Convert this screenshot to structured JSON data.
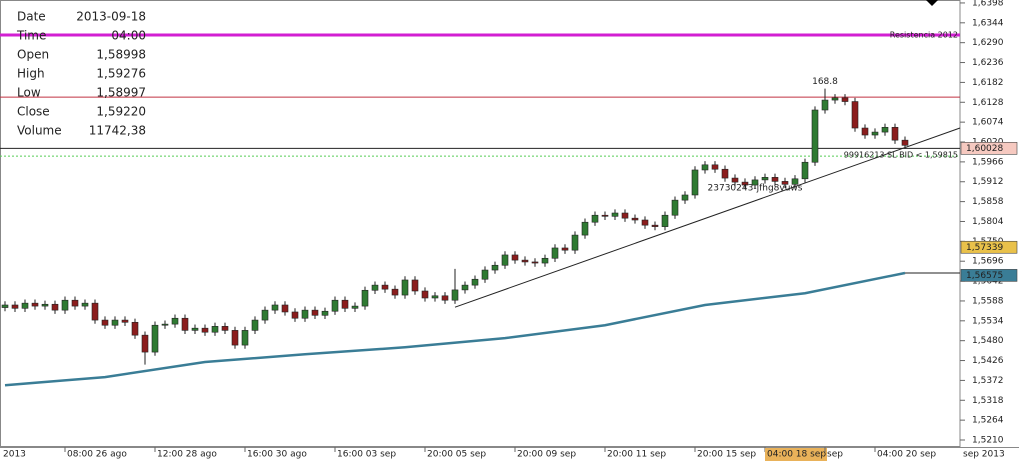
{
  "chart_data": {
    "type": "candlestick",
    "xlim": [
      -0.5,
      95.5
    ],
    "ylim": [
      1.5191,
      1.6406
    ],
    "yticks": [
      {
        "value": 1.6398,
        "label": "1,6398"
      },
      {
        "value": 1.6344,
        "label": "1,6344"
      },
      {
        "value": 1.629,
        "label": "1,6290"
      },
      {
        "value": 1.6236,
        "label": "1,6236"
      },
      {
        "value": 1.6182,
        "label": "1,6182"
      },
      {
        "value": 1.6128,
        "label": "1,6128"
      },
      {
        "value": 1.6074,
        "label": "1,6074"
      },
      {
        "value": 1.602,
        "label": "1,6020"
      },
      {
        "value": 1.5966,
        "label": "1,5966"
      },
      {
        "value": 1.5912,
        "label": "1,5912"
      },
      {
        "value": 1.5858,
        "label": "1,5858"
      },
      {
        "value": 1.5804,
        "label": "1,5804"
      },
      {
        "value": 1.575,
        "label": "1,5750"
      },
      {
        "value": 1.5696,
        "label": "1,5696"
      },
      {
        "value": 1.5642,
        "label": "1,5642"
      },
      {
        "value": 1.5588,
        "label": "1,5588"
      },
      {
        "value": 1.5534,
        "label": "1,5534"
      },
      {
        "value": 1.548,
        "label": "1,5480"
      },
      {
        "value": 1.5426,
        "label": "1,5426"
      },
      {
        "value": 1.5372,
        "label": "1,5372"
      },
      {
        "value": 1.5318,
        "label": "1,5318"
      },
      {
        "value": 1.5264,
        "label": "1,5264"
      },
      {
        "value": 1.521,
        "label": "1,5210"
      }
    ],
    "xticks": [
      {
        "value": 6,
        "label": "08:00 26 ago"
      },
      {
        "value": 15,
        "label": "12:00 28 ago"
      },
      {
        "value": 24,
        "label": "16:00 30 ago"
      },
      {
        "value": 33,
        "label": "16:00 03 sep"
      },
      {
        "value": 42,
        "label": "20:00 05 sep"
      },
      {
        "value": 51,
        "label": "20:00 09 sep"
      },
      {
        "value": 60,
        "label": "20:00 11 sep"
      },
      {
        "value": 69,
        "label": "20:00 15 sep"
      },
      {
        "value": 76,
        "label": "04:00 18 sep",
        "highlight": true
      },
      {
        "value": 82,
        "label": "sep"
      },
      {
        "value": 87,
        "label": "04:00 20 sep"
      }
    ],
    "x_axis_left_label": "2013",
    "x_axis_right_label": "sep 2013",
    "up_color": "#2f7a32",
    "down_color": "#8b1d1d",
    "open": [
      1.557,
      1.5577,
      1.5568,
      1.5582,
      1.5574,
      1.5579,
      1.5563,
      1.559,
      1.5574,
      1.5582,
      1.5536,
      1.5522,
      1.5536,
      1.553,
      1.5495,
      1.5449,
      1.5522,
      1.5525,
      1.5541,
      1.5508,
      1.5514,
      1.5503,
      1.5519,
      1.5508,
      1.5468,
      1.5508,
      1.5536,
      1.5563,
      1.5577,
      1.5558,
      1.5541,
      1.5563,
      1.5549,
      1.556,
      1.559,
      1.5568,
      1.5574,
      1.5617,
      1.5631,
      1.562,
      1.5604,
      1.5645,
      1.5615,
      1.5596,
      1.5602,
      1.559,
      1.5618,
      1.5631,
      1.5647,
      1.5672,
      1.5685,
      1.5713,
      1.5699,
      1.5694,
      1.5691,
      1.5704,
      1.5732,
      1.5726,
      1.5767,
      1.5802,
      1.5821,
      1.5818,
      1.5827,
      1.5813,
      1.5808,
      1.5794,
      1.579,
      1.5821,
      1.5862,
      1.5876,
      1.5944,
      1.5958,
      1.5946,
      1.5922,
      1.5911,
      1.5903,
      1.5917,
      1.5924,
      1.5913,
      1.5905,
      1.592,
      1.5965,
      1.6107,
      1.6134,
      1.614,
      1.613,
      1.6058,
      1.6039,
      1.6047,
      1.606,
      1.6025
    ],
    "high": [
      1.5587,
      1.5587,
      1.5592,
      1.5592,
      1.5589,
      1.5589,
      1.56,
      1.56,
      1.5592,
      1.5592,
      1.5546,
      1.5546,
      1.5546,
      1.554,
      1.5505,
      1.5532,
      1.5535,
      1.5551,
      1.5551,
      1.5524,
      1.5524,
      1.5529,
      1.5529,
      1.5518,
      1.5518,
      1.5546,
      1.5573,
      1.5587,
      1.5587,
      1.5568,
      1.5573,
      1.5573,
      1.557,
      1.56,
      1.56,
      1.5584,
      1.5627,
      1.5641,
      1.5641,
      1.563,
      1.5655,
      1.5655,
      1.5625,
      1.5612,
      1.5612,
      1.5675,
      1.5641,
      1.5657,
      1.5682,
      1.5695,
      1.5723,
      1.5723,
      1.5709,
      1.5704,
      1.5714,
      1.5742,
      1.5742,
      1.5777,
      1.5812,
      1.5831,
      1.5831,
      1.5837,
      1.5837,
      1.5823,
      1.5818,
      1.5804,
      1.5831,
      1.5872,
      1.5886,
      1.5954,
      1.5968,
      1.5968,
      1.5956,
      1.5932,
      1.5921,
      1.5927,
      1.5934,
      1.5934,
      1.5923,
      1.593,
      1.5975,
      1.6117,
      1.6165,
      1.615,
      1.615,
      1.614,
      1.6068,
      1.6057,
      1.607,
      1.607,
      1.6035
    ],
    "low": [
      1.556,
      1.5558,
      1.5558,
      1.5564,
      1.5564,
      1.5553,
      1.5553,
      1.5564,
      1.5564,
      1.5526,
      1.5512,
      1.5512,
      1.552,
      1.5485,
      1.5415,
      1.5439,
      1.5512,
      1.5515,
      1.5498,
      1.5498,
      1.5493,
      1.5493,
      1.5498,
      1.5458,
      1.5458,
      1.5498,
      1.5526,
      1.5553,
      1.5548,
      1.5531,
      1.5531,
      1.5539,
      1.5539,
      1.555,
      1.5558,
      1.5558,
      1.5564,
      1.5607,
      1.561,
      1.5594,
      1.5594,
      1.5605,
      1.5586,
      1.5586,
      1.558,
      1.558,
      1.5608,
      1.5621,
      1.5637,
      1.5662,
      1.5675,
      1.5689,
      1.5684,
      1.5681,
      1.5681,
      1.5694,
      1.5716,
      1.5716,
      1.5757,
      1.5792,
      1.5808,
      1.5808,
      1.5803,
      1.5798,
      1.5784,
      1.578,
      1.578,
      1.5811,
      1.5852,
      1.5866,
      1.5934,
      1.5936,
      1.5912,
      1.5901,
      1.5893,
      1.5893,
      1.5907,
      1.5903,
      1.5895,
      1.5895,
      1.591,
      1.5955,
      1.6097,
      1.6124,
      1.612,
      1.6048,
      1.6029,
      1.6029,
      1.6037,
      1.6015,
      1.6001
    ],
    "close": [
      1.5577,
      1.5568,
      1.5582,
      1.5574,
      1.5579,
      1.5563,
      1.559,
      1.5574,
      1.5582,
      1.5536,
      1.5522,
      1.5536,
      1.553,
      1.5495,
      1.5449,
      1.5522,
      1.5525,
      1.5541,
      1.5508,
      1.5514,
      1.5503,
      1.5519,
      1.5508,
      1.5468,
      1.5508,
      1.5536,
      1.5563,
      1.5577,
      1.5558,
      1.5541,
      1.5563,
      1.5549,
      1.556,
      1.559,
      1.5568,
      1.5574,
      1.5617,
      1.5631,
      1.562,
      1.5604,
      1.5645,
      1.5615,
      1.5596,
      1.5602,
      1.559,
      1.5618,
      1.5631,
      1.5647,
      1.5672,
      1.5685,
      1.5713,
      1.5699,
      1.5694,
      1.5691,
      1.5704,
      1.5732,
      1.5726,
      1.5767,
      1.5802,
      1.5821,
      1.5818,
      1.5827,
      1.5813,
      1.5808,
      1.5794,
      1.579,
      1.5821,
      1.5862,
      1.5876,
      1.5944,
      1.5958,
      1.5946,
      1.5922,
      1.5911,
      1.5903,
      1.5917,
      1.5924,
      1.5913,
      1.5905,
      1.592,
      1.5965,
      1.6107,
      1.6134,
      1.614,
      1.613,
      1.6058,
      1.6039,
      1.6047,
      1.606,
      1.6025,
      1.6011
    ],
    "moving_average": {
      "color": "#3a7d96",
      "x": [
        0,
        10,
        20,
        30,
        40,
        50,
        60,
        70,
        80,
        90
      ],
      "values": [
        1.5359,
        1.5381,
        1.5422,
        1.5443,
        1.5462,
        1.5487,
        1.5522,
        1.5577,
        1.5609,
        1.5664
      ]
    },
    "trendline": {
      "x": [
        45,
        95.5
      ],
      "values": [
        1.5571,
        1.6058
      ],
      "color": "#222222"
    },
    "levels": [
      {
        "value": 1.6311,
        "color": "#d21fd2",
        "label": "Resistencia 2012"
      },
      {
        "value": 1.6142,
        "color": "#c03040"
      },
      {
        "value": 1.60028,
        "color": "#222222"
      },
      {
        "value": 1.59815,
        "color": "#55cc55",
        "dashed": true,
        "label": "99916213 SL BID  < 1,59815"
      }
    ],
    "price_markers": [
      {
        "value": 1.60028,
        "label": "1,60028",
        "color": "#f6c9c0"
      },
      {
        "value": 1.57339,
        "label": "1,57339",
        "color": "#e9c14a"
      },
      {
        "value": 1.56575,
        "label": "1,56575",
        "color": "#3a7d96"
      }
    ],
    "annotations": [
      {
        "x": 82,
        "y": 1.6185,
        "text": "168.8"
      },
      {
        "x": 75,
        "y": 1.5895,
        "text": "23730243-jfhg8vuws"
      }
    ],
    "info_panel": [
      [
        "Date",
        "2013-09-18"
      ],
      [
        "Time",
        "04:00"
      ],
      [
        "Open",
        "1,58998"
      ],
      [
        "High",
        "1,59276"
      ],
      [
        "Low",
        "1,58997"
      ],
      [
        "Close",
        "1,59220"
      ],
      [
        "Volume",
        "11742,38"
      ]
    ]
  }
}
